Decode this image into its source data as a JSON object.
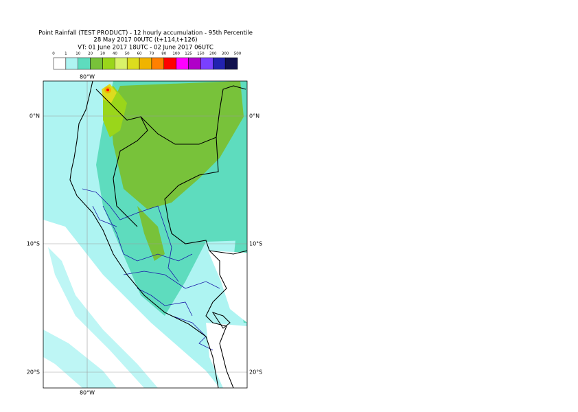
{
  "title_lines": [
    "Point Rainfall (TEST PRODUCT) - 12 hourly accumulation - 95th Percentile",
    "28 May 2017 00UTC (t+114,t+126)",
    "VT: 01 June 2017 18UTC - 02 June 2017 06UTC"
  ],
  "legend": {
    "labels": [
      "0",
      "1",
      "10",
      "20",
      "30",
      "40",
      "50",
      "60",
      "70",
      "80",
      "100",
      "125",
      "150",
      "200",
      "300",
      "500"
    ],
    "colors": [
      "#ffffff",
      "#aef4f2",
      "#5edcbe",
      "#78c23a",
      "#9ad61a",
      "#d9f26a",
      "#dcdc1e",
      "#f0b400",
      "#ff8000",
      "#ff0000",
      "#ff00ff",
      "#b000c8",
      "#7a40ff",
      "#2222b0",
      "#10104e"
    ]
  },
  "axis_labels": {
    "lon_top": "80°W",
    "lon_bottom": "80°W",
    "lat_0_left": "0°N",
    "lat_0_right": "0°N",
    "lat_10_left": "10°S",
    "lat_10_right": "10°S",
    "lat_20_left": "20°S",
    "lat_20_right": "20°S"
  }
}
